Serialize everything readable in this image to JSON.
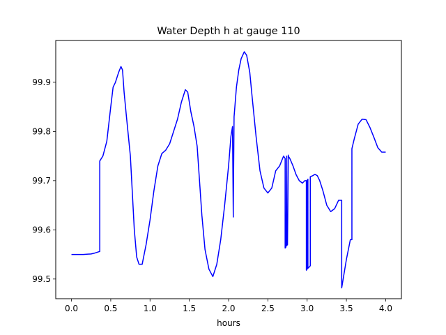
{
  "chart_data": {
    "type": "line",
    "title": "Water Depth h at gauge 110",
    "xlabel": "hours",
    "ylabel": "",
    "xlim": [
      -0.2,
      4.2
    ],
    "ylim": [
      99.46,
      99.985
    ],
    "xticks": [
      0.0,
      0.5,
      1.0,
      1.5,
      2.0,
      2.5,
      3.0,
      3.5,
      4.0
    ],
    "xtick_labels": [
      "0.0",
      "0.5",
      "1.0",
      "1.5",
      "2.0",
      "2.5",
      "3.0",
      "3.5",
      "4.0"
    ],
    "yticks": [
      99.5,
      99.6,
      99.7,
      99.8,
      99.9
    ],
    "ytick_labels": [
      "99.5",
      "99.6",
      "99.7",
      "99.8",
      "99.9"
    ],
    "grid": false,
    "series": [
      {
        "color": "#0000ff",
        "x": [
          0.0,
          0.15,
          0.25,
          0.3,
          0.36,
          0.36,
          0.4,
          0.45,
          0.5,
          0.53,
          0.56,
          0.6,
          0.63,
          0.65,
          0.67,
          0.7,
          0.75,
          0.8,
          0.83,
          0.86,
          0.9,
          0.95,
          1.0,
          1.05,
          1.1,
          1.15,
          1.2,
          1.25,
          1.3,
          1.35,
          1.4,
          1.45,
          1.48,
          1.52,
          1.56,
          1.6,
          1.63,
          1.66,
          1.7,
          1.75,
          1.8,
          1.85,
          1.9,
          1.95,
          2.0,
          2.03,
          2.05,
          2.06,
          2.06,
          2.07,
          2.08,
          2.1,
          2.13,
          2.16,
          2.2,
          2.23,
          2.27,
          2.3,
          2.35,
          2.4,
          2.45,
          2.5,
          2.55,
          2.6,
          2.65,
          2.7,
          2.72,
          2.72,
          2.73,
          2.74,
          2.74,
          2.75,
          2.76,
          2.76,
          2.78,
          2.82,
          2.86,
          2.9,
          2.94,
          2.97,
          2.99,
          2.99,
          3.0,
          3.0,
          3.01,
          3.01,
          3.03,
          3.04,
          3.04,
          3.07,
          3.1,
          3.13,
          3.16,
          3.2,
          3.25,
          3.3,
          3.35,
          3.4,
          3.44,
          3.44,
          3.5,
          3.55,
          3.57,
          3.57,
          3.6,
          3.65,
          3.7,
          3.75,
          3.8,
          3.85,
          3.9,
          3.95,
          4.0
        ],
        "y": [
          99.55,
          99.55,
          99.551,
          99.553,
          99.556,
          99.74,
          99.75,
          99.78,
          99.85,
          99.89,
          99.9,
          99.92,
          99.932,
          99.925,
          99.88,
          99.83,
          99.75,
          99.6,
          99.545,
          99.53,
          99.53,
          99.57,
          99.62,
          99.68,
          99.73,
          99.755,
          99.762,
          99.775,
          99.8,
          99.825,
          99.86,
          99.885,
          99.88,
          99.84,
          99.81,
          99.77,
          99.7,
          99.63,
          99.56,
          99.52,
          99.505,
          99.53,
          99.58,
          99.65,
          99.73,
          99.79,
          99.81,
          99.626,
          99.64,
          99.83,
          99.85,
          99.89,
          99.925,
          99.948,
          99.962,
          99.955,
          99.92,
          99.87,
          99.79,
          99.72,
          99.685,
          99.675,
          99.685,
          99.72,
          99.73,
          99.75,
          99.745,
          99.563,
          99.565,
          99.75,
          99.568,
          99.57,
          99.752,
          99.75,
          99.745,
          99.73,
          99.712,
          99.7,
          99.695,
          99.7,
          99.7,
          99.518,
          99.52,
          99.7,
          99.703,
          99.522,
          99.525,
          99.527,
          99.708,
          99.71,
          99.713,
          99.71,
          99.7,
          99.68,
          99.65,
          99.637,
          99.643,
          99.66,
          99.66,
          99.482,
          99.54,
          99.58,
          99.58,
          99.765,
          99.785,
          99.815,
          99.825,
          99.824,
          99.808,
          99.788,
          99.767,
          99.758,
          99.758
        ]
      }
    ]
  }
}
